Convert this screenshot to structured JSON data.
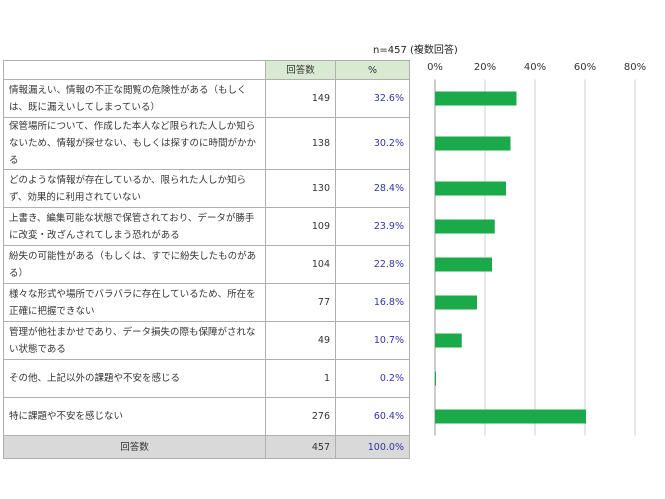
{
  "note": "n=457 (複数回答)",
  "table": {
    "headers": {
      "count": "回答数",
      "percent": "%"
    },
    "rows": [
      {
        "label": "情報漏えい、情報の不正な閲覧の危険性がある（もしくは、既に漏えいしてしまっている）",
        "count": "149",
        "percent": "32.6%"
      },
      {
        "label": "保管場所について、作成した本人など限られた人しか知らないため、情報が探せない、もしくは探すのに時間がかかる",
        "count": "138",
        "percent": "30.2%"
      },
      {
        "label": "どのような情報が存在しているか、限られた人しか知らず、効果的に利用されていない",
        "count": "130",
        "percent": "28.4%"
      },
      {
        "label": "上書き、編集可能な状態で保管されており、データが勝手に改変・改ざんされてしまう恐れがある",
        "count": "109",
        "percent": "23.9%"
      },
      {
        "label": "紛失の可能性がある（もしくは、すでに紛失したものがある）",
        "count": "104",
        "percent": "22.8%"
      },
      {
        "label": "様々な形式や場所でバラバラに存在しているため、所在を正確に把握できない",
        "count": "77",
        "percent": "16.8%"
      },
      {
        "label": "管理が他社まかせであり、データ損失の際も保障がされない状態である",
        "count": "49",
        "percent": "10.7%"
      },
      {
        "label": "その他、上記以外の課題や不安を感じる",
        "count": "1",
        "percent": "0.2%"
      },
      {
        "label": "特に課題や不安を感じない",
        "count": "276",
        "percent": "60.4%"
      }
    ],
    "total": {
      "label": "回答数",
      "count": "457",
      "percent": "100.0%"
    }
  },
  "chart_data": {
    "type": "bar",
    "orientation": "horizontal",
    "values": [
      32.6,
      30.2,
      28.4,
      23.9,
      22.8,
      16.8,
      10.7,
      0.2,
      60.4
    ],
    "xlim": [
      0,
      80
    ],
    "tick_labels": [
      "0%",
      "20%",
      "40%",
      "60%",
      "80%"
    ],
    "grid": true,
    "bar_color": "#1aaa4a"
  }
}
